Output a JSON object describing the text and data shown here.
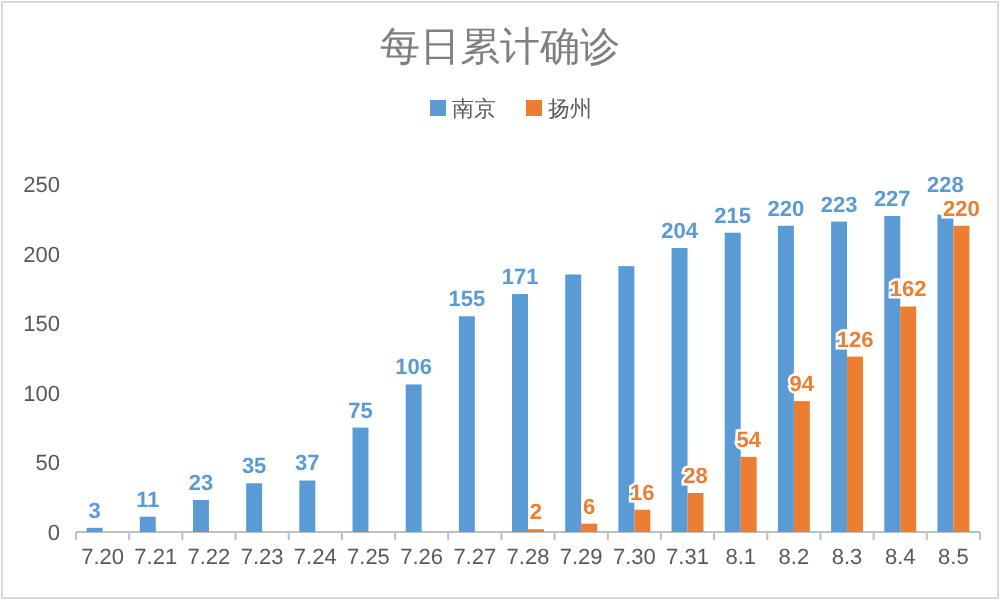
{
  "chart_data": {
    "type": "bar",
    "title": "每日累计确诊",
    "categories": [
      "7.20",
      "7.21",
      "7.22",
      "7.23",
      "7.24",
      "7.25",
      "7.26",
      "7.27",
      "7.28",
      "7.29",
      "7.30",
      "7.31",
      "8.1",
      "8.2",
      "8.3",
      "8.4",
      "8.5"
    ],
    "series": [
      {
        "name": "南京",
        "color": "#5b9bd5",
        "values": [
          3,
          11,
          23,
          35,
          37,
          75,
          106,
          155,
          171,
          185,
          191,
          204,
          215,
          220,
          223,
          227,
          228
        ],
        "value_labels": [
          "3",
          "11",
          "23",
          "35",
          "37",
          "75",
          "106",
          "155",
          "171",
          null,
          null,
          "204",
          "215",
          "220",
          "223",
          "227",
          "228"
        ]
      },
      {
        "name": "扬州",
        "color": "#ed7d31",
        "values": [
          null,
          null,
          null,
          null,
          null,
          null,
          null,
          null,
          2,
          6,
          16,
          28,
          54,
          94,
          126,
          162,
          220
        ],
        "value_labels": [
          null,
          null,
          null,
          null,
          null,
          null,
          null,
          null,
          "2",
          "6",
          "16",
          "28",
          "54",
          "94",
          "126",
          "162",
          "220"
        ]
      }
    ],
    "ylim": [
      0,
      250
    ],
    "yticks": [
      0,
      50,
      100,
      150,
      200,
      250
    ],
    "grid": false,
    "legend": "top"
  }
}
